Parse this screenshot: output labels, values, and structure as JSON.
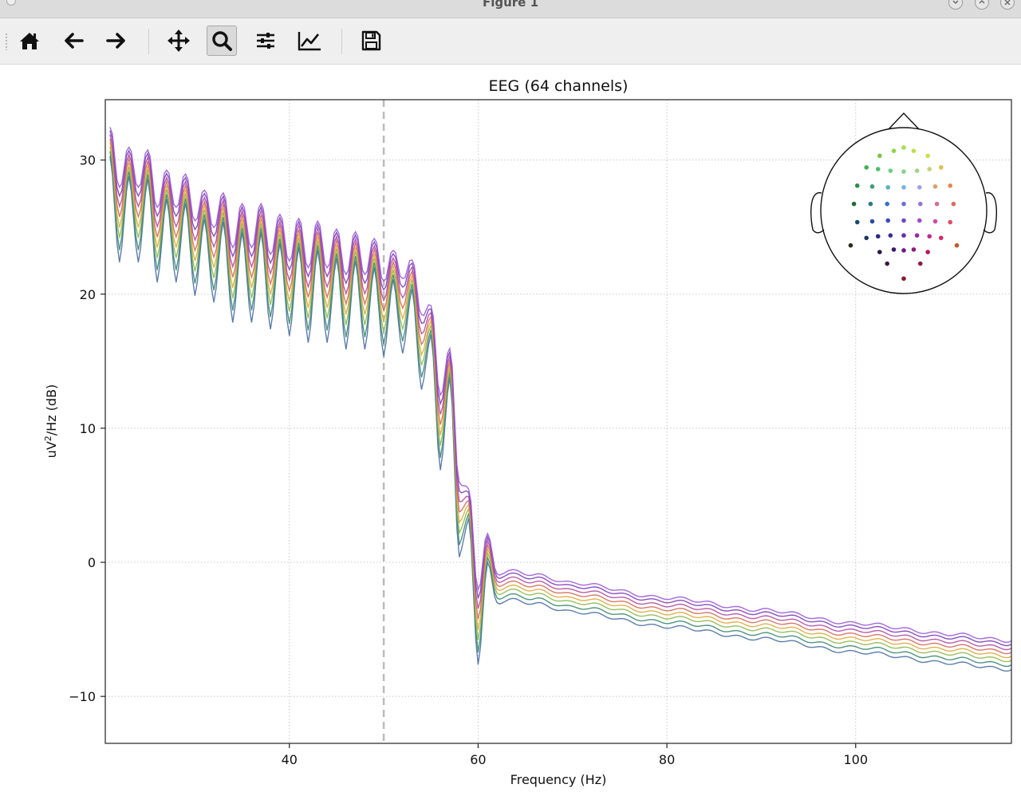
{
  "window": {
    "title": "Figure 1",
    "controls": [
      "minimize",
      "maximize",
      "close"
    ]
  },
  "toolbar": {
    "buttons": [
      {
        "name": "home",
        "icon": "home-icon"
      },
      {
        "name": "back",
        "icon": "arrow-left-icon"
      },
      {
        "name": "forward",
        "icon": "arrow-right-icon"
      },
      {
        "name": "pan",
        "icon": "move-icon"
      },
      {
        "name": "zoom",
        "icon": "magnifier-icon",
        "active": true
      },
      {
        "name": "subplots",
        "icon": "sliders-icon"
      },
      {
        "name": "customize",
        "icon": "line-chart-icon"
      },
      {
        "name": "save",
        "icon": "floppy-disk-icon"
      }
    ]
  },
  "chart_data": {
    "type": "line",
    "title": "EEG (64 channels)",
    "xlabel": "Frequency (Hz)",
    "ylabel": "uV²/Hz (dB)",
    "ylabel_parts": {
      "pre": "uV",
      "sup": "2",
      "post": "/Hz (dB)"
    },
    "xlim": [
      20.5,
      116.5
    ],
    "ylim": [
      -13.5,
      34.5
    ],
    "x_ticks": [
      40,
      60,
      80,
      100
    ],
    "x_tick_labels": [
      "40",
      "60",
      "80",
      "100"
    ],
    "y_ticks": [
      -10,
      0,
      10,
      20,
      30
    ],
    "y_tick_labels": [
      "−10",
      "0",
      "10",
      "20",
      "30"
    ],
    "grid": true,
    "vline": {
      "x": 50,
      "style": "dashed",
      "color": "#bbbbbb"
    },
    "channel_count": 64,
    "series_colors": [
      "#4a6fa5",
      "#3a8a6e",
      "#8fb84a",
      "#e0a83a",
      "#d06a5a",
      "#b04aa0",
      "#7a3fb8",
      "#9b59d6"
    ],
    "series_offsets_db": [
      -1.2,
      -0.85,
      -0.5,
      -0.2,
      0.1,
      0.4,
      0.7,
      0.95
    ],
    "mean_psd": {
      "comb_peaks_x": [
        21,
        23,
        25,
        27,
        29,
        31,
        33,
        35,
        37,
        39,
        41,
        43,
        45,
        47,
        49,
        51,
        53,
        55,
        57,
        59,
        61
      ],
      "comb_peaks_y": [
        31.5,
        30,
        29.8,
        28.3,
        28,
        26.8,
        26.6,
        25.8,
        25.8,
        25,
        24.7,
        24.5,
        23.9,
        23.7,
        23.2,
        22.3,
        21.6,
        18.2,
        15,
        4.5,
        1.2
      ],
      "comb_troughs_x": [
        22,
        24,
        26,
        28,
        30,
        32,
        34,
        36,
        38,
        40,
        42,
        44,
        46,
        48,
        50,
        52,
        54,
        56,
        58,
        60
      ],
      "comb_troughs_y": [
        25.5,
        25.5,
        24,
        24,
        23,
        22.5,
        21,
        21,
        20.5,
        20,
        19.5,
        19.5,
        19,
        19,
        18.5,
        18.7,
        16,
        10,
        3.5,
        -4.5
      ],
      "tail_x": [
        62,
        64,
        66,
        70,
        80,
        90,
        100,
        110,
        116.5
      ],
      "tail_y": [
        -1.8,
        -1.6,
        -1.9,
        -2.5,
        -3.6,
        -4.5,
        -5.5,
        -6.3,
        -6.8
      ]
    },
    "sensor_inset": {
      "position": "top-right",
      "sensors": [
        {
          "x": -0.29,
          "y": -0.66,
          "c": "#7cc34a"
        },
        {
          "x": -0.12,
          "y": -0.72,
          "c": "#8fd24a"
        },
        {
          "x": 0.0,
          "y": -0.76,
          "c": "#a2e04a"
        },
        {
          "x": 0.12,
          "y": -0.72,
          "c": "#b7e04a"
        },
        {
          "x": 0.29,
          "y": -0.66,
          "c": "#cbe04a"
        },
        {
          "x": -0.45,
          "y": -0.52,
          "c": "#3fb05a"
        },
        {
          "x": -0.31,
          "y": -0.5,
          "c": "#4cc06a"
        },
        {
          "x": -0.16,
          "y": -0.48,
          "c": "#6cd07a"
        },
        {
          "x": 0.0,
          "y": -0.47,
          "c": "#8bd08a"
        },
        {
          "x": 0.16,
          "y": -0.48,
          "c": "#a8d08a"
        },
        {
          "x": 0.31,
          "y": -0.5,
          "c": "#c8d07a"
        },
        {
          "x": 0.45,
          "y": -0.52,
          "c": "#e0c04a"
        },
        {
          "x": -0.56,
          "y": -0.3,
          "c": "#2e8b4a"
        },
        {
          "x": -0.38,
          "y": -0.29,
          "c": "#3aa07a"
        },
        {
          "x": -0.19,
          "y": -0.28,
          "c": "#5ab0c0"
        },
        {
          "x": 0.0,
          "y": -0.28,
          "c": "#7ab0e0"
        },
        {
          "x": 0.19,
          "y": -0.28,
          "c": "#a0a0e0"
        },
        {
          "x": 0.38,
          "y": -0.29,
          "c": "#e0a070"
        },
        {
          "x": 0.56,
          "y": -0.3,
          "c": "#e08a4a"
        },
        {
          "x": -0.6,
          "y": -0.08,
          "c": "#1e6b3a"
        },
        {
          "x": -0.4,
          "y": -0.08,
          "c": "#2a7a8a"
        },
        {
          "x": -0.2,
          "y": -0.08,
          "c": "#3a70c0"
        },
        {
          "x": 0.0,
          "y": -0.08,
          "c": "#6a70d0"
        },
        {
          "x": 0.2,
          "y": -0.08,
          "c": "#a070d0"
        },
        {
          "x": 0.4,
          "y": -0.08,
          "c": "#d07090"
        },
        {
          "x": 0.6,
          "y": -0.08,
          "c": "#e06a5a"
        },
        {
          "x": -0.56,
          "y": 0.14,
          "c": "#1a4a6a"
        },
        {
          "x": -0.38,
          "y": 0.13,
          "c": "#2a4aa0"
        },
        {
          "x": -0.19,
          "y": 0.12,
          "c": "#3a4ac0"
        },
        {
          "x": 0.0,
          "y": 0.12,
          "c": "#6a4ac8"
        },
        {
          "x": 0.19,
          "y": 0.12,
          "c": "#a04ac8"
        },
        {
          "x": 0.38,
          "y": 0.13,
          "c": "#d04aa0"
        },
        {
          "x": 0.56,
          "y": 0.14,
          "c": "#e04a6a"
        },
        {
          "x": -0.45,
          "y": 0.33,
          "c": "#1a3a5a"
        },
        {
          "x": -0.31,
          "y": 0.31,
          "c": "#2a2a80"
        },
        {
          "x": -0.16,
          "y": 0.3,
          "c": "#3a2a9a"
        },
        {
          "x": 0.0,
          "y": 0.3,
          "c": "#6a2aa0"
        },
        {
          "x": 0.16,
          "y": 0.3,
          "c": "#9a2aa0"
        },
        {
          "x": 0.31,
          "y": 0.31,
          "c": "#c02a90"
        },
        {
          "x": 0.45,
          "y": 0.33,
          "c": "#d02a6a"
        },
        {
          "x": -0.29,
          "y": 0.5,
          "c": "#2a1a4a"
        },
        {
          "x": -0.12,
          "y": 0.47,
          "c": "#3a1a6a"
        },
        {
          "x": 0.0,
          "y": 0.48,
          "c": "#6a1a8a"
        },
        {
          "x": 0.12,
          "y": 0.47,
          "c": "#901a7a"
        },
        {
          "x": 0.29,
          "y": 0.5,
          "c": "#b01a5a"
        },
        {
          "x": -0.2,
          "y": 0.64,
          "c": "#3a1a3a"
        },
        {
          "x": 0.2,
          "y": 0.64,
          "c": "#8a1a4a"
        },
        {
          "x": 0.0,
          "y": 0.82,
          "c": "#8a1a2a"
        },
        {
          "x": -0.64,
          "y": 0.42,
          "c": "#2a2a1a"
        },
        {
          "x": 0.64,
          "y": 0.42,
          "c": "#c05a2a"
        }
      ]
    }
  }
}
